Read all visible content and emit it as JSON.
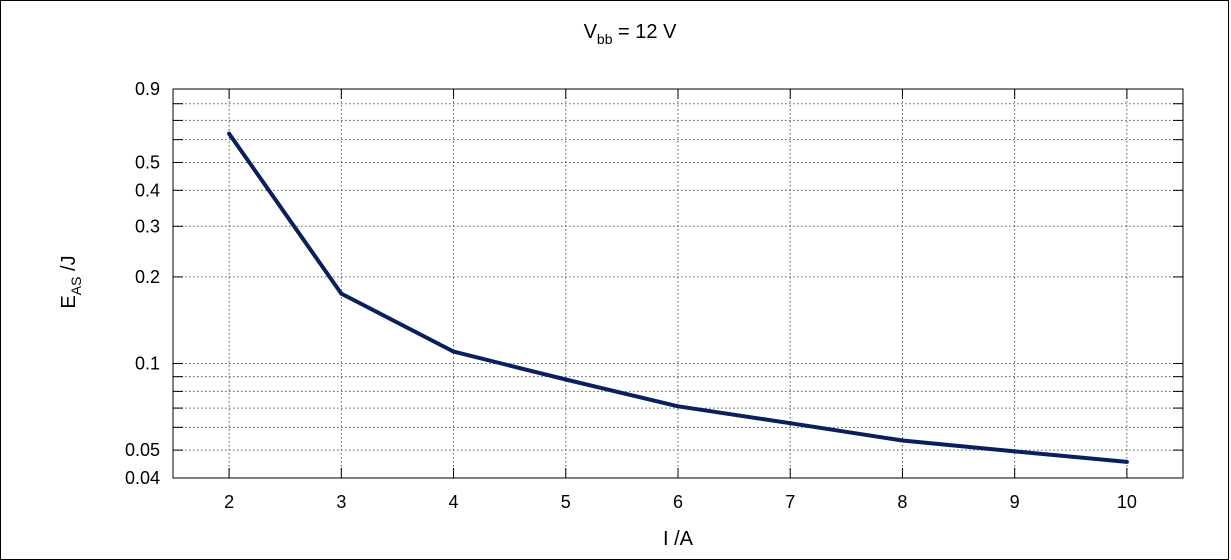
{
  "chart_data": {
    "type": "line",
    "title": {
      "main": "V",
      "sub": "bb",
      "rest": " = 12 V"
    },
    "xlabel": "I /A",
    "ylabel": {
      "main": "E",
      "sub": "AS",
      "rest": " /J"
    },
    "x_scale": "linear",
    "y_scale": "log",
    "xlim": [
      1.5,
      10.5
    ],
    "ylim": [
      0.04,
      0.9
    ],
    "x_ticks": [
      2,
      3,
      4,
      5,
      6,
      7,
      8,
      9,
      10
    ],
    "x_tick_labels": [
      "2",
      "3",
      "4",
      "5",
      "6",
      "7",
      "8",
      "9",
      "10"
    ],
    "y_ticks": [
      0.04,
      0.05,
      0.1,
      0.2,
      0.3,
      0.4,
      0.5,
      0.9
    ],
    "y_tick_labels": [
      "0.04",
      "0.05",
      "0.1",
      "0.2",
      "0.3",
      "0.4",
      "0.5",
      "0.9"
    ],
    "y_gridlines": [
      0.04,
      0.05,
      0.06,
      0.07,
      0.08,
      0.09,
      0.1,
      0.2,
      0.3,
      0.4,
      0.5,
      0.6,
      0.7,
      0.8,
      0.9
    ],
    "grid": true,
    "grid_style": "dotted",
    "series": [
      {
        "color": "#0a1f5c",
        "x": [
          2,
          3,
          4,
          5,
          6,
          7,
          8,
          9,
          10
        ],
        "y": [
          0.63,
          0.175,
          0.11,
          0.088,
          0.071,
          0.062,
          0.054,
          0.0495,
          0.0455
        ]
      }
    ]
  }
}
